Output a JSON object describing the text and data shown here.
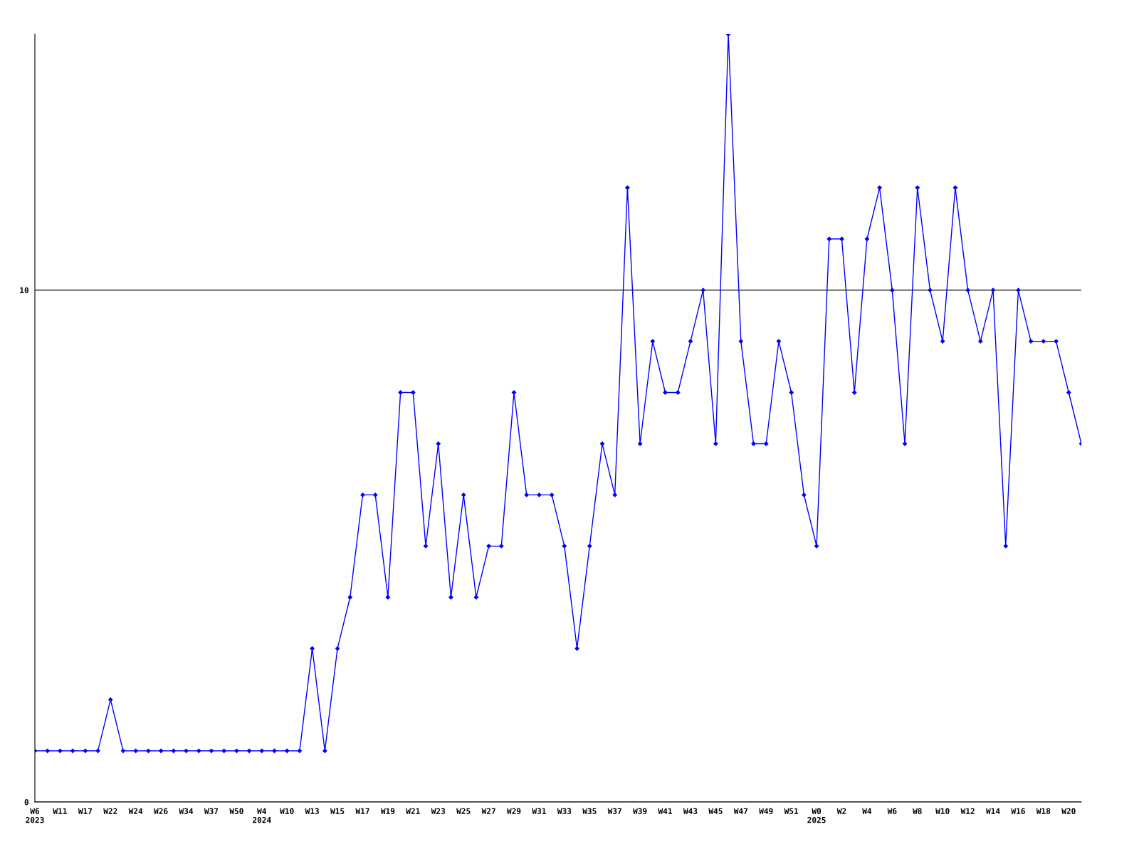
{
  "chart_data": {
    "type": "line",
    "categories": [
      "W6\n2023",
      null,
      "W11",
      null,
      "W17",
      null,
      "W22",
      null,
      "W24",
      null,
      "W26",
      null,
      "W34",
      null,
      "W37",
      null,
      "W50",
      null,
      "W4\n2024",
      null,
      "W10",
      null,
      "W13",
      null,
      "W15",
      null,
      "W17",
      null,
      "W19",
      null,
      "W21",
      null,
      "W23",
      null,
      "W25",
      null,
      "W27",
      null,
      "W29",
      null,
      "W31",
      null,
      "W33",
      null,
      "W35",
      null,
      "W37",
      null,
      "W39",
      null,
      "W41",
      null,
      "W43",
      null,
      "W45",
      null,
      "W47",
      null,
      "W49",
      null,
      "W51",
      null,
      "W0\n2025",
      null,
      "W2",
      null,
      "W4",
      null,
      "W6",
      null,
      "W8",
      null,
      "W10",
      null,
      "W12",
      null,
      "W14",
      null,
      "W16",
      null,
      "W18",
      null,
      "W20",
      null
    ],
    "series": [
      {
        "color": "#0000ff",
        "values": [
          1,
          1,
          1,
          1,
          1,
          1,
          2,
          1,
          1,
          1,
          1,
          1,
          1,
          1,
          1,
          1,
          1,
          1,
          1,
          1,
          1,
          1,
          3,
          1,
          3,
          4,
          6,
          6,
          4,
          8,
          8,
          5,
          7,
          4,
          6,
          4,
          5,
          5,
          8,
          6,
          6,
          6,
          5,
          3,
          5,
          7,
          6,
          12,
          7,
          9,
          8,
          8,
          9,
          10,
          7,
          15,
          9,
          7,
          7,
          9,
          8,
          6,
          5,
          11,
          11,
          8,
          11,
          12,
          10,
          7,
          12,
          10,
          9,
          12,
          10,
          9,
          10,
          5,
          10,
          9,
          9,
          9,
          8,
          7
        ]
      }
    ],
    "ylim": [
      0,
      15
    ],
    "yticks": [
      0,
      10
    ],
    "grid": "y",
    "marker": "diamond",
    "line_style": "solid"
  }
}
